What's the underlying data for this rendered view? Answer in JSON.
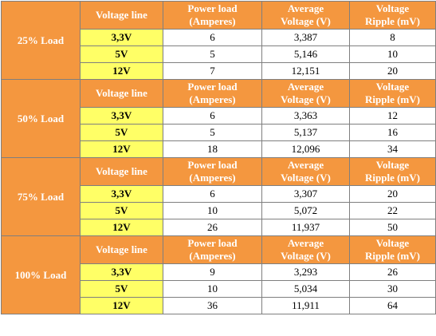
{
  "colors": {
    "header_bg": "#f4973f",
    "voltage_line_bg": "#ffff66",
    "header_text": "#ffffff"
  },
  "headers": {
    "voltage_line": "Voltage line",
    "power_load_1": "Power load",
    "power_load_2": "(Amperes)",
    "avg_voltage_1": "Average",
    "avg_voltage_2": "Voltage (V)",
    "ripple_1": "Voltage",
    "ripple_2": "Ripple (mV)"
  },
  "groups": [
    {
      "load": "25% Load",
      "rows": [
        {
          "line": "3,3V",
          "amps": "6",
          "voltage": "3,387",
          "ripple": "8"
        },
        {
          "line": "5V",
          "amps": "5",
          "voltage": "5,146",
          "ripple": "10"
        },
        {
          "line": "12V",
          "amps": "7",
          "voltage": "12,151",
          "ripple": "20"
        }
      ]
    },
    {
      "load": "50% Load",
      "rows": [
        {
          "line": "3,3V",
          "amps": "6",
          "voltage": "3,363",
          "ripple": "12"
        },
        {
          "line": "5V",
          "amps": "5",
          "voltage": "5,137",
          "ripple": "16"
        },
        {
          "line": "12V",
          "amps": "18",
          "voltage": "12,096",
          "ripple": "34"
        }
      ]
    },
    {
      "load": "75% Load",
      "rows": [
        {
          "line": "3,3V",
          "amps": "6",
          "voltage": "3,307",
          "ripple": "20"
        },
        {
          "line": "5V",
          "amps": "10",
          "voltage": "5,072",
          "ripple": "22"
        },
        {
          "line": "12V",
          "amps": "26",
          "voltage": "11,937",
          "ripple": "50"
        }
      ]
    },
    {
      "load": "100% Load",
      "rows": [
        {
          "line": "3,3V",
          "amps": "9",
          "voltage": "3,293",
          "ripple": "26"
        },
        {
          "line": "5V",
          "amps": "10",
          "voltage": "5,034",
          "ripple": "30"
        },
        {
          "line": "12V",
          "amps": "36",
          "voltage": "11,911",
          "ripple": "64"
        }
      ]
    }
  ]
}
